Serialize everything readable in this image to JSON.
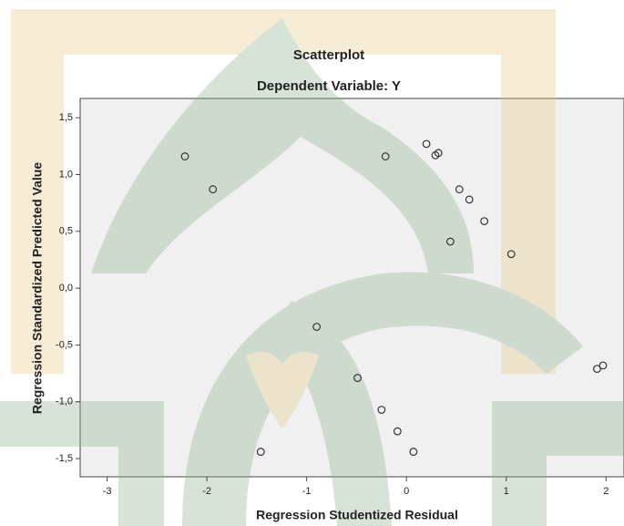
{
  "chart_data": {
    "type": "scatter",
    "title": "Scatterplot",
    "subtitle": "Dependent Variable: Y",
    "x_label": "Regression Studentized Residual",
    "y_label": "Regression Standardized Predicted Value",
    "color": "#333333",
    "x": [
      -2.22,
      -1.94,
      -0.21,
      0.2,
      0.29,
      0.32,
      0.53,
      0.63,
      0.78,
      0.44,
      1.05,
      -0.9,
      -0.49,
      -0.25,
      -0.09,
      0.07,
      -1.46,
      1.91,
      1.97
    ],
    "values": [
      1.16,
      0.87,
      1.16,
      1.27,
      1.17,
      1.19,
      0.87,
      0.78,
      0.59,
      0.41,
      0.3,
      -0.34,
      -0.79,
      -1.07,
      -1.26,
      -1.44,
      -1.44,
      -0.71,
      -0.68
    ],
    "xlim": [
      -3.27,
      2.18
    ],
    "ylim": [
      -1.66,
      1.67
    ],
    "xticks": [
      -3,
      -2,
      -1,
      0,
      1,
      2
    ],
    "yticks": [
      {
        "value": -1.5,
        "label": "-1,5"
      },
      {
        "value": -1.0,
        "label": "-1,0"
      },
      {
        "value": -0.5,
        "label": "-0,5"
      },
      {
        "value": 0.0,
        "label": "0,0"
      },
      {
        "value": 0.5,
        "label": "0,5"
      },
      {
        "value": 1.0,
        "label": "1,0"
      },
      {
        "value": 1.5,
        "label": "1,5"
      }
    ]
  }
}
